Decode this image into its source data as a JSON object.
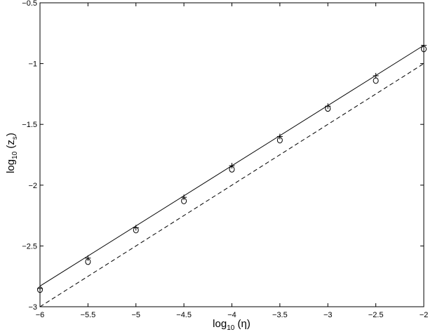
{
  "chart_data": {
    "type": "line",
    "title": "",
    "xlabel": {
      "base": "log",
      "sub": "10",
      "rest": " (η)"
    },
    "ylabel": {
      "base": "log",
      "sub": "10",
      "rest": " (z",
      "sub2": "s",
      "end": ")"
    },
    "xlim": [
      -6,
      -2
    ],
    "ylim": [
      -3,
      -0.5
    ],
    "xticks": [
      -6,
      -5.5,
      -5,
      -4.5,
      -4,
      -3.5,
      -3,
      -2.5,
      -2
    ],
    "yticks": [
      -3,
      -2.5,
      -2,
      -1.5,
      -1,
      -0.5
    ],
    "xtick_labels": [
      "−6",
      "−5.5",
      "−5",
      "−4.5",
      "−4",
      "−3.5",
      "−3",
      "−2.5",
      "−2"
    ],
    "ytick_labels": [
      "−3",
      "−2.5",
      "−2",
      "−1.5",
      "−1",
      "−0.5"
    ],
    "grid": false,
    "legend": "none",
    "series": [
      {
        "style": "solid",
        "color": "#000000",
        "x": [
          -6,
          -2
        ],
        "y": [
          -2.83,
          -0.85
        ]
      },
      {
        "style": "dashed",
        "color": "#000000",
        "x": [
          -6,
          -2
        ],
        "y": [
          -3.0,
          -1.0
        ]
      },
      {
        "style": "marker-plus",
        "color": "#000000",
        "x": [
          -6,
          -5.5,
          -5,
          -4.5,
          -4,
          -3.5,
          -3,
          -2.5,
          -2
        ],
        "y": [
          -2.85,
          -2.6,
          -2.35,
          -2.1,
          -1.84,
          -1.6,
          -1.35,
          -1.1,
          -0.85
        ]
      },
      {
        "style": "marker-circle",
        "color": "#000000",
        "x": [
          -6,
          -5.5,
          -5,
          -4.5,
          -4,
          -3.5,
          -3,
          -2.5,
          -2
        ],
        "y": [
          -2.86,
          -2.63,
          -2.37,
          -2.13,
          -1.87,
          -1.63,
          -1.37,
          -1.14,
          -0.88
        ]
      }
    ]
  }
}
